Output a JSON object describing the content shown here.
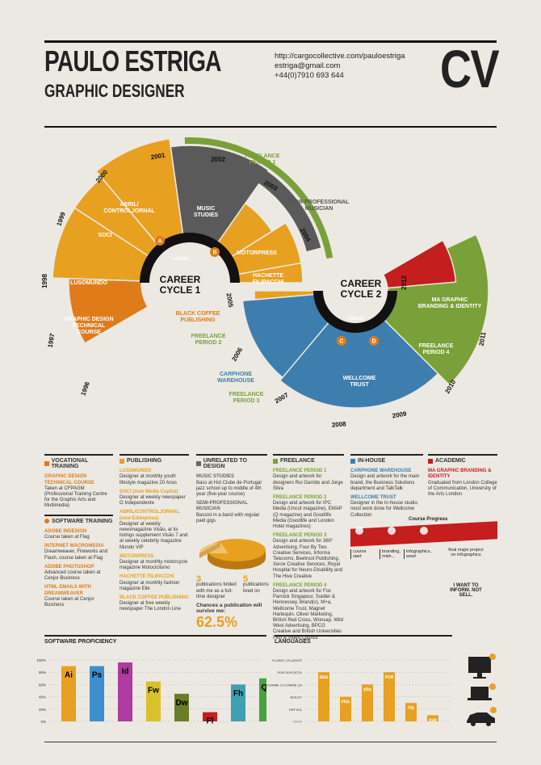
{
  "header": {
    "name": "PAULO ESTRIGA",
    "role": "GRAPHIC DESIGNER",
    "contact": [
      "http://cargocollective.com/pauloestriga",
      "estriga@gmail.com",
      "+44(0)7910 693 644"
    ],
    "cv": "CV"
  },
  "wheel": {
    "cycle1": "CAREER\nCYCLE 1",
    "cycle1_city": "LISBON",
    "cycle2": "CAREER\nCYCLE 2",
    "cycle2_city": "LONDON",
    "years": [
      "1996",
      "1997",
      "1998",
      "1999",
      "2000",
      "2001",
      "2002",
      "2003",
      "2004",
      "2005",
      "2006",
      "2007",
      "2008",
      "2009",
      "2010",
      "2011",
      "2012"
    ],
    "segments": {
      "graphic_design": "GRAPHIC DESIGN\nTECHNICAL\nCOURSE",
      "lusomundo": "LUSOMUNDO",
      "soci": "SOCI",
      "abril": "ABRIL/\nCONTROLJORNAL",
      "music": "MUSIC\nSTUDIES",
      "motorpress": "MOTORPRESS",
      "hachette": "HACHETTE\nFILIPACCHI",
      "black_coffee": "BLACK COFFEE\nPUBLISHING",
      "freelance1": "FREELANCE\nPERIOD 1",
      "freelance2": "FREELANCE\nPERIOD 2",
      "freelance3": "FREELANCE\nPERIOD 3",
      "freelance4": "FREELANCE\nPERIOD 4",
      "semi_pro": "SEMI-PROFESSIONAL\nMUSICIAN",
      "carphone": "CARPHONE\nWAREHOUSE",
      "wellcome": "WELLCOME\nTRUST",
      "ma": "MA GRAPHIC\nBRANDING & IDENTITY"
    },
    "markers": [
      "A",
      "B",
      "C",
      "D"
    ]
  },
  "columns": {
    "vocational": {
      "title": "VOCATIONAL TRAINING",
      "items": [
        {
          "h": "GRAPHIC DESIGN TECHNICAL COURSE",
          "t": "Taken at CFPAGM (Professional Training Centre for the Graphic Arts and Multimedia)"
        }
      ]
    },
    "software_training": {
      "title": "SOFTWARE TRAINING",
      "items": [
        {
          "h": "ADOBE INDESIGN",
          "t": "Course taken at Flag"
        },
        {
          "h": "INTERNET MACROMEDIA",
          "t": "Dreamweaver, Fireworks and Flash, course taken at Flag"
        },
        {
          "h": "ADOBE PHOTOSHOP",
          "t": "Advanced course taken at Cenjor Business"
        },
        {
          "h": "HTML EMAILS WITH DREAMWEAVER",
          "t": "Course taken at Cenjor Business"
        }
      ]
    },
    "publishing": {
      "title": "PUBLISHING",
      "items": [
        {
          "h": "LUSOMUNDO",
          "t": "Designer at monthly youth lifestyle magazine 20 Anos"
        },
        {
          "h": "SOCI (now Media Capital)",
          "t": "Designer at weekly newspaper O Independente"
        },
        {
          "h": "ABRIL/CONTROLJORNAL (now Edimpresa)",
          "t": "Designer at weekly newsmagazine Visão, at its listings supplement Visão 7 and at weekly celebrity magazine Mundo VIP"
        },
        {
          "h": "MOTORPRESS",
          "t": "Designer at monthly motorcycle magazine Motociclismo"
        },
        {
          "h": "HACHETTE FILIPACCHI",
          "t": "Designer at monthly fashion magazine Elle"
        },
        {
          "h": "BLACK COFFEE PUBLISHING",
          "t": "Designer at free weekly newspaper The London Line"
        }
      ]
    },
    "unrelated": {
      "title": "UNRELATED TO DESIGN",
      "items": [
        {
          "h": "MUSIC STUDIES",
          "t": "Bass at Hot Clube de Portugal jazz school up to middle of 4th year (five-year course)"
        },
        {
          "h": "SEMI-PROFESSIONAL MUSICIAN",
          "t": "Bassist in a band with regular paid gigs"
        }
      ],
      "stat1_num": "3",
      "stat1_txt": "publications folded with me as a full-time designer",
      "stat2_num": "5",
      "stat2_txt": "publications lived on",
      "chances": "Chances a publication will survive me:",
      "percent": "62.5%"
    },
    "freelance": {
      "title": "FREELANCE",
      "items": [
        {
          "h": "FREELANCE PERIOD 1",
          "t": "Design and artwork for designers Rui Garrido and Jorge Silva"
        },
        {
          "h": "FREELANCE PERIOD 2",
          "t": "Design and artwork for IPC Media (Uncut magazine), EMAP (Q magazine) and Goodlife Media (Goodlife and London Hotel magazines)"
        },
        {
          "h": "FREELANCE PERIOD 3",
          "t": "Design and artwork for 360° Advertising, Four By Two Creative Services, Informa Telecoms, Beetroot Publishing, Xerox Creative Services, Royal Hospital for Neuro-Disability and The Hive Creative"
        },
        {
          "h": "FREELANCE PERIOD 4",
          "t": "Design and artwork for Fox Parrock Singapour, Suidler & Hennessey, Brand(x), M+a, Wellcome Trust, Magnet Harlequin, Oliver Marketing, British Red Cross, Wonsap, Wild West Advertising, BPCG Creative and British Universities Film & Video Council"
        }
      ]
    },
    "inhouse": {
      "title": "IN-HOUSE",
      "items": [
        {
          "h": "CARPHONE WAREHOUSE",
          "t": "Design and artwork for the main brand, the Business Solutions department and TalkTalk"
        },
        {
          "h": "WELLCOME TRUST",
          "t": "Designer in the in-house studio, most work done for Wellcome Collection"
        }
      ]
    },
    "academic": {
      "title": "ACADEMIC",
      "items": [
        {
          "h": "MA GRAPHIC BRANDING & IDENTITY",
          "t": "Graduated from London College of Communication, University of the Arts London"
        }
      ]
    },
    "course_progress": {
      "title": "Course Progress",
      "labels": [
        "course start",
        "branding, mish...",
        "infographics, wow!",
        "final major project on infographics"
      ],
      "quote": "I WANT TO INFORM. NOT SELL."
    }
  },
  "software": {
    "title": "SOFTWARE PROFICIENCY",
    "ticks": [
      "100%",
      "80%",
      "60%",
      "40%",
      "20%",
      "0%"
    ]
  },
  "languages": {
    "title": "LANGUAGES",
    "levels": [
      "FLUENT | FLUENTE",
      "POR SUPOSTO!",
      "COMME CI COMME ÇA",
      "JESUS?",
      "DIFFICIL",
      "?????"
    ]
  },
  "chart_data": [
    {
      "type": "bar",
      "title": "SOFTWARE PROFICIENCY",
      "categories": [
        "Ai",
        "Ps",
        "Id",
        "Fw",
        "Dw",
        "Fl",
        "Fh",
        "Qx"
      ],
      "values": [
        90,
        90,
        96,
        65,
        45,
        15,
        60,
        70
      ],
      "colors": [
        "#e8a021",
        "#3e8ed0",
        "#b03aa0",
        "#d8c22a",
        "#6a7d2a",
        "#c41e1e",
        "#3ea0b0",
        "#4aa040"
      ],
      "ylim": [
        0,
        100
      ]
    },
    {
      "type": "bar",
      "title": "LANGUAGES",
      "categories": [
        "ENG",
        "FRA",
        "SPA",
        "POR",
        "ITA",
        "SVK"
      ],
      "values": [
        80,
        40,
        60,
        80,
        30,
        10
      ],
      "ylim": [
        0,
        100
      ]
    }
  ],
  "colors": {
    "orange": "#e8a021",
    "dark_orange": "#e07b1a",
    "gray": "#5a5a5a",
    "green": "#7aa03a",
    "blue": "#3e7eae",
    "red": "#c41e1e",
    "black": "#111111"
  }
}
